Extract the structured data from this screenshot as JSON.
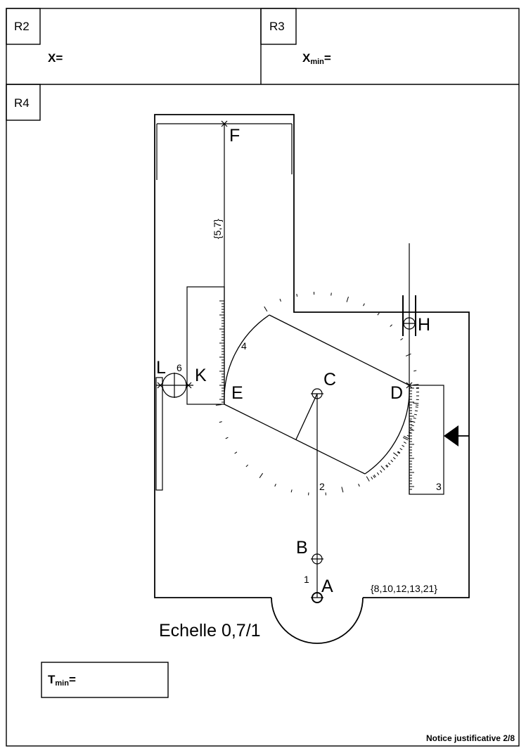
{
  "header": {
    "r2": {
      "tag": "R2",
      "x_label": "X",
      "x_eq": "="
    },
    "r3": {
      "tag": "R3",
      "x_label": "X",
      "x_sub": "min",
      "x_eq": "="
    }
  },
  "section": {
    "r4_tag": "R4"
  },
  "drawing": {
    "points": {
      "A": "A",
      "B": "B",
      "C": "C",
      "D": "D",
      "E": "E",
      "F": "F",
      "H": "H",
      "K": "K",
      "L": "L"
    },
    "numbers": {
      "n1": "1",
      "n2": "2",
      "n3": "3",
      "n4": "4",
      "n6": "6"
    },
    "sets": {
      "fe": "{5,7}",
      "base": "{8,10,12,13,21}"
    },
    "scale": "Echelle 0,7/1"
  },
  "t_box": {
    "label": "T",
    "sub": "min",
    "eq": "="
  },
  "footer": {
    "note": "Notice justificative 2/8"
  }
}
